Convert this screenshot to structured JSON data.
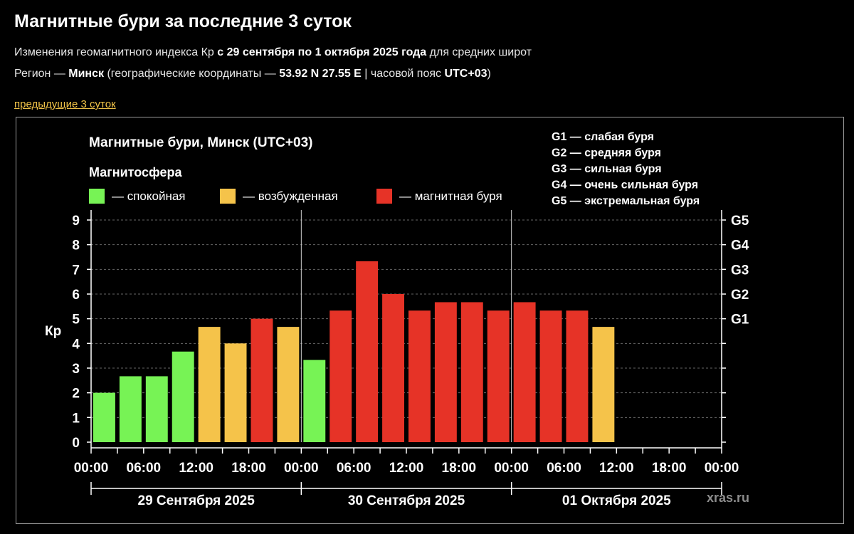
{
  "header": {
    "title": "Магнитные бури за последние 3 суток",
    "sub1_pre": "Изменения геомагнитного индекса Кр ",
    "sub1_bold": "с 29 сентября по 1 октября 2025 года",
    "sub1_post": " для средних широт",
    "sub2_pre": "Регион — ",
    "sub2_city": "Минск",
    "sub2_mid": " (географические координаты — ",
    "sub2_coords": "53.92 N 27.55 E",
    "sub2_mid2": " | часовой пояс ",
    "sub2_tz": "UTC+03",
    "sub2_end": ")",
    "prev_link": "предыдущие 3 суток"
  },
  "colors": {
    "calm": "#77f355",
    "excited": "#f5c34a",
    "storm": "#e63327",
    "grid": "#666666",
    "axis": "#ffffff"
  },
  "chart_data": {
    "type": "bar",
    "title": "Магнитные бури, Минск (UTC+03)",
    "legend_title": "Магнитосфера",
    "legend": [
      {
        "key": "calm",
        "label": "— спокойная"
      },
      {
        "key": "excited",
        "label": "— возбужденная"
      },
      {
        "key": "storm",
        "label": "— магнитная буря"
      }
    ],
    "g_levels": [
      {
        "name": "G1",
        "desc": "G1 — слабая буря",
        "kp": 5
      },
      {
        "name": "G2",
        "desc": "G2 — средняя буря",
        "kp": 6
      },
      {
        "name": "G3",
        "desc": "G3 — сильная буря",
        "kp": 7
      },
      {
        "name": "G4",
        "desc": "G4 — очень сильная буря",
        "kp": 8
      },
      {
        "name": "G5",
        "desc": "G5 — экстремальная буря",
        "kp": 9
      }
    ],
    "ylabel": "Кр",
    "ylim": [
      0,
      9
    ],
    "yticks": [
      0,
      1,
      2,
      3,
      4,
      5,
      6,
      7,
      8,
      9
    ],
    "xtick_labels": [
      "00:00",
      "06:00",
      "12:00",
      "18:00",
      "00:00",
      "06:00",
      "12:00",
      "18:00",
      "00:00",
      "06:00",
      "12:00",
      "18:00",
      "00:00"
    ],
    "days": [
      "29 Сентября 2025",
      "30 Сентября 2025",
      "01 Октября 2025"
    ],
    "interval_hours": 3,
    "values": [
      2.0,
      2.67,
      2.67,
      3.67,
      4.67,
      4.0,
      5.0,
      4.67,
      3.33,
      5.33,
      7.33,
      6.0,
      5.33,
      5.67,
      5.67,
      5.33,
      5.67,
      5.33,
      5.33,
      4.67
    ],
    "categories": [
      "calm",
      "calm",
      "calm",
      "calm",
      "excited",
      "excited",
      "storm",
      "excited",
      "calm",
      "storm",
      "storm",
      "storm",
      "storm",
      "storm",
      "storm",
      "storm",
      "storm",
      "storm",
      "storm",
      "excited"
    ],
    "watermark": "xras.ru"
  }
}
